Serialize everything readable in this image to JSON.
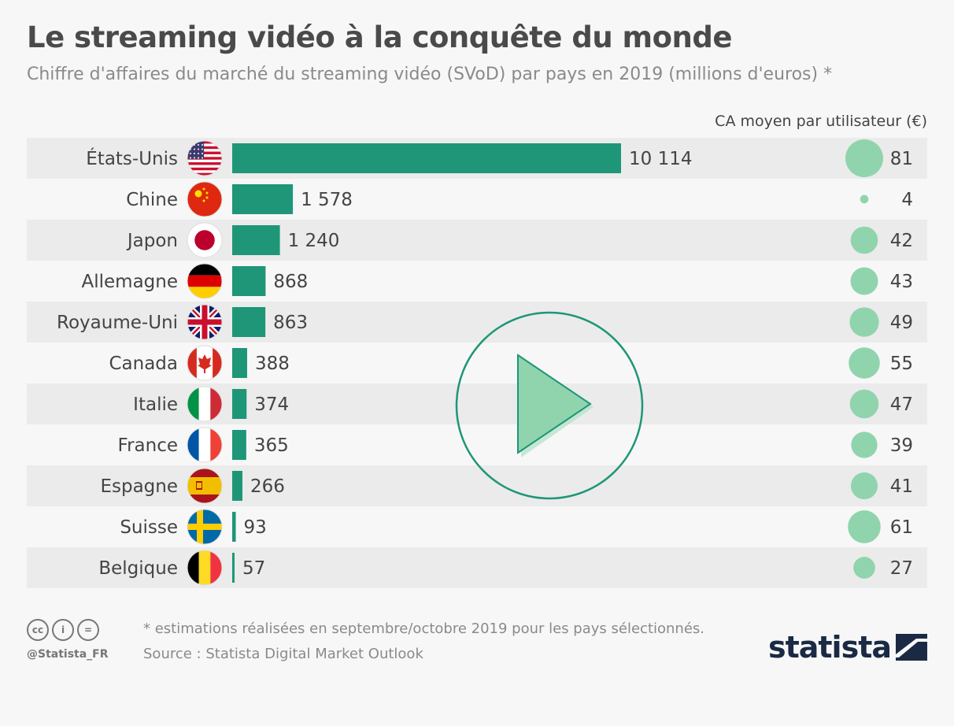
{
  "header": {
    "title": "Le streaming vidéo à la conquête du monde",
    "subtitle": "Chiffre d'affaires du marché du streaming vidéo (SVoD) par pays en 2019 (millions d'euros) *",
    "col_header": "CA moyen par utilisateur (€)"
  },
  "chart_data": {
    "type": "bar",
    "orientation": "horizontal",
    "categories": [
      "États-Unis",
      "Chine",
      "Japon",
      "Allemagne",
      "Royaume-Uni",
      "Canada",
      "Italie",
      "France",
      "Espagne",
      "Suisse",
      "Belgique"
    ],
    "value_labels": [
      "10 114",
      "1 578",
      "1 240",
      "868",
      "863",
      "388",
      "374",
      "365",
      "266",
      "93",
      "57"
    ],
    "series": [
      {
        "values": [
          10114,
          1578,
          1240,
          868,
          863,
          388,
          374,
          365,
          266,
          93,
          57
        ]
      },
      {
        "values": [
          81,
          4,
          42,
          43,
          49,
          55,
          47,
          39,
          41,
          61,
          27
        ]
      }
    ],
    "colors": {
      "bar": "#1e9677",
      "bubble": "#90d4ad",
      "row_alt": "#ebebeb"
    },
    "flags": [
      "us-flag",
      "cn-flag",
      "jp-flag",
      "de-flag",
      "gb-flag",
      "ca-flag",
      "it-flag",
      "fr-flag",
      "es-flag",
      "ch-flag",
      "be-flag"
    ]
  },
  "footer": {
    "note": "* estimations réalisées en septembre/octobre 2019 pour les pays sélectionnés.",
    "source": "Source : Statista Digital Market Outlook",
    "handle": "@Statista_FR",
    "logo": "statista",
    "cc_icons": [
      "cc-icon",
      "by-icon",
      "nd-icon"
    ],
    "cc_glyphs": [
      "cc",
      "i",
      "="
    ]
  },
  "overlay": {
    "icon": "play-icon"
  }
}
